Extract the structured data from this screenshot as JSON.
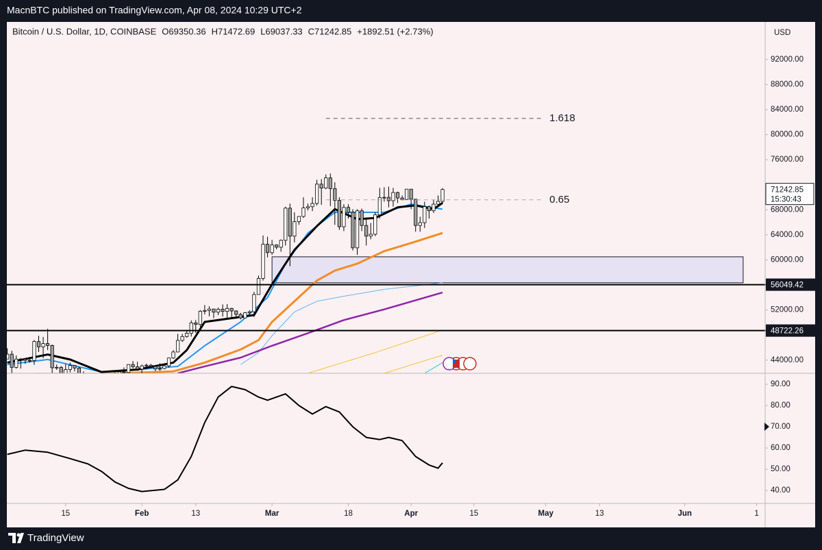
{
  "header": {
    "text": "MacnBTC published on TradingView.com, Apr 08, 2024 10:29 UTC+2"
  },
  "footer": {
    "brand": "TradingView"
  },
  "chart_data": [
    {
      "type": "candlestick",
      "title": "Bitcoin / U.S. Dollar, 1D, COINBASE",
      "legend_values": [
        "O69350.36",
        "H71472.69",
        "L69037.33",
        "C71242.85",
        "+1892.51 (+2.73%)"
      ],
      "currency": "USD",
      "up_color": "#ffffff",
      "down_color": "#9e9e9e",
      "edge_color": "#000000",
      "xlim": [
        0.9,
        169.9
      ],
      "ylim": [
        41900,
        98000
      ],
      "yticks": [
        {
          "value": 92000,
          "label": "92000.00"
        },
        {
          "value": 88000,
          "label": "88000.00"
        },
        {
          "value": 84000,
          "label": "84000.00"
        },
        {
          "value": 80000,
          "label": "80000.00"
        },
        {
          "value": 76000,
          "label": "76000.00"
        },
        {
          "value": 68000,
          "label": "68000.00"
        },
        {
          "value": 64000,
          "label": "64000.00"
        },
        {
          "value": 60000,
          "label": "60000.00"
        },
        {
          "value": 52000,
          "label": "52000.00"
        },
        {
          "value": 44000,
          "label": "44000.00"
        }
      ],
      "grid": false,
      "x": [
        0,
        1,
        2,
        3,
        4,
        5,
        6,
        7,
        8,
        9,
        10,
        11,
        12,
        13,
        14,
        15,
        16,
        17,
        18,
        19,
        20,
        21,
        22,
        23,
        24,
        25,
        26,
        27,
        28,
        29,
        30,
        31,
        32,
        33,
        34,
        35,
        36,
        37,
        38,
        39,
        40,
        41,
        42,
        43,
        44,
        45,
        46,
        47,
        48,
        49,
        50,
        51,
        52,
        53,
        54,
        55,
        56,
        57,
        58,
        59,
        60,
        61,
        62,
        63,
        64,
        65,
        66,
        67,
        68,
        69,
        70,
        71,
        72,
        73,
        74,
        75,
        76,
        77,
        78,
        79,
        80,
        81,
        82,
        83,
        84,
        85,
        86,
        87,
        88,
        89,
        90,
        91,
        92,
        93,
        94,
        95,
        96,
        97,
        98
      ],
      "candles": [
        [
          42280,
          44200,
          42200,
          44180
        ],
        [
          44180,
          45900,
          44150,
          44950
        ],
        [
          44950,
          45500,
          40800,
          42850
        ],
        [
          42850,
          44750,
          42650,
          44170
        ],
        [
          44170,
          44350,
          42650,
          44160
        ],
        [
          44160,
          44250,
          43400,
          43970
        ],
        [
          43970,
          44500,
          43600,
          43940
        ],
        [
          43940,
          47200,
          43250,
          46970
        ],
        [
          46970,
          47900,
          45300,
          46120
        ],
        [
          46120,
          47700,
          44300,
          46650
        ],
        [
          46650,
          49000,
          45600,
          46340
        ],
        [
          46340,
          46500,
          41500,
          42780
        ],
        [
          42780,
          43300,
          42450,
          42850
        ],
        [
          42850,
          43050,
          41700,
          41730
        ],
        [
          41730,
          43400,
          41700,
          42500
        ],
        [
          42500,
          43600,
          42050,
          43150
        ],
        [
          43150,
          43200,
          42200,
          42740
        ],
        [
          42740,
          42900,
          40700,
          41270
        ],
        [
          41270,
          42200,
          40300,
          41620
        ],
        [
          41620,
          41850,
          41450,
          41670
        ],
        [
          41670,
          41900,
          41500,
          41550
        ],
        [
          41550,
          41700,
          39450,
          39530
        ],
        [
          39530,
          40150,
          38550,
          39850
        ],
        [
          39850,
          40500,
          39500,
          40080
        ],
        [
          40080,
          40300,
          39250,
          39940
        ],
        [
          39940,
          42200,
          39800,
          41810
        ],
        [
          41810,
          42250,
          41400,
          42120
        ],
        [
          42120,
          42850,
          41650,
          42030
        ],
        [
          42030,
          43350,
          41800,
          43300
        ],
        [
          43300,
          43850,
          42700,
          42940
        ],
        [
          42940,
          43750,
          42300,
          42570
        ],
        [
          42570,
          43300,
          41900,
          43080
        ],
        [
          43080,
          43450,
          42550,
          43190
        ],
        [
          43190,
          43400,
          42900,
          43000
        ],
        [
          43000,
          43100,
          42250,
          42580
        ],
        [
          42580,
          43500,
          42300,
          42660
        ],
        [
          42660,
          43400,
          42550,
          43090
        ],
        [
          43090,
          44400,
          42800,
          44340
        ],
        [
          44340,
          45600,
          44200,
          45300
        ],
        [
          45300,
          48200,
          45250,
          47150
        ],
        [
          47150,
          48200,
          46900,
          47770
        ],
        [
          47770,
          48600,
          47600,
          48290
        ],
        [
          48290,
          50350,
          47750,
          49950
        ],
        [
          49950,
          50400,
          48350,
          49710
        ],
        [
          49710,
          52000,
          49300,
          51810
        ],
        [
          51810,
          52800,
          51300,
          51930
        ],
        [
          51930,
          52600,
          51000,
          52160
        ],
        [
          52160,
          52200,
          50700,
          51660
        ],
        [
          51660,
          52400,
          51200,
          52130
        ],
        [
          52130,
          52900,
          50950,
          51780
        ],
        [
          51780,
          52950,
          50650,
          52260
        ],
        [
          52260,
          52350,
          50800,
          51850
        ],
        [
          51850,
          51950,
          50600,
          51300
        ],
        [
          51300,
          51550,
          50500,
          50740
        ],
        [
          50740,
          51700,
          50700,
          51570
        ],
        [
          51570,
          51950,
          51300,
          51730
        ],
        [
          51730,
          54900,
          50900,
          54480
        ],
        [
          54480,
          57500,
          54450,
          57050
        ],
        [
          57050,
          63900,
          56700,
          62500
        ],
        [
          62500,
          63700,
          60400,
          61170
        ],
        [
          61170,
          63200,
          60800,
          62390
        ],
        [
          62390,
          62500,
          61700,
          62030
        ],
        [
          62030,
          63250,
          61300,
          63130
        ],
        [
          63130,
          68500,
          62300,
          68270
        ],
        [
          68270,
          69000,
          59000,
          63800
        ],
        [
          63800,
          67600,
          62800,
          66110
        ],
        [
          66110,
          67000,
          65600,
          66940
        ],
        [
          66940,
          70000,
          66700,
          68300
        ],
        [
          68300,
          69000,
          67900,
          68500
        ],
        [
          68500,
          70000,
          67800,
          69020
        ],
        [
          69020,
          72800,
          68700,
          72100
        ],
        [
          72100,
          72900,
          68800,
          71470
        ],
        [
          71470,
          73650,
          71300,
          73100
        ],
        [
          73100,
          73800,
          68600,
          71390
        ],
        [
          71390,
          72400,
          65600,
          69500
        ],
        [
          69500,
          70000,
          64800,
          65300
        ],
        [
          65300,
          68900,
          64600,
          68390
        ],
        [
          68390,
          68900,
          66600,
          67600
        ],
        [
          67600,
          68100,
          61500,
          61930
        ],
        [
          61930,
          68100,
          60800,
          67850
        ],
        [
          67850,
          68200,
          64600,
          65500
        ],
        [
          65500,
          66600,
          62300,
          63800
        ],
        [
          63800,
          65900,
          63300,
          64100
        ],
        [
          64100,
          67600,
          63800,
          67200
        ],
        [
          67200,
          71500,
          66600,
          69950
        ],
        [
          69950,
          71600,
          69300,
          69990
        ],
        [
          69990,
          71700,
          68400,
          69450
        ],
        [
          69450,
          71500,
          68500,
          70760
        ],
        [
          70760,
          70900,
          69100,
          69890
        ],
        [
          69890,
          70300,
          69500,
          69650
        ],
        [
          69650,
          71300,
          69600,
          71300
        ],
        [
          71300,
          71300,
          68100,
          69700
        ],
        [
          69700,
          69700,
          64500,
          65500
        ],
        [
          65500,
          66900,
          64500,
          65950
        ],
        [
          65950,
          69300,
          65100,
          68500
        ],
        [
          68500,
          68700,
          66600,
          67850
        ],
        [
          67850,
          69600,
          67500,
          68900
        ],
        [
          68900,
          70300,
          68800,
          69350
        ],
        [
          69350.36,
          71472.69,
          69037.33,
          71242.85
        ]
      ],
      "lines": [
        {
          "color": "#64b5f6",
          "width": 1,
          "x": [
            53,
            57,
            60,
            65,
            70,
            76,
            85,
            98
          ],
          "values": [
            43300,
            45200,
            47900,
            51700,
            53400,
            54200,
            55300,
            56350
          ]
        },
        {
          "color": "#fbc02d",
          "width": 1,
          "x": [
            68,
            83,
            98
          ],
          "values": [
            41900,
            45200,
            48800
          ]
        },
        {
          "color": "#fbc02d",
          "width": 1,
          "x": [
            85,
            98
          ],
          "values": [
            41900,
            44800
          ]
        },
        {
          "color": "#26c6da",
          "width": 1,
          "x": [
            94,
            98
          ],
          "values": [
            41900,
            43600
          ]
        },
        {
          "color": "#8e24aa",
          "width": 2.5,
          "x": [
            39,
            45,
            53,
            60,
            68,
            76,
            85,
            98
          ],
          "values": [
            41900,
            43000,
            44400,
            46300,
            48300,
            50400,
            52100,
            54800
          ]
        },
        {
          "color": "#f28c28",
          "width": 3,
          "x": [
            7,
            22,
            38,
            45,
            53,
            57,
            60,
            65,
            70,
            74,
            79,
            85,
            91,
            98
          ],
          "values": [
            41800,
            41800,
            42200,
            43600,
            45700,
            47200,
            50100,
            53400,
            56700,
            58300,
            59400,
            61400,
            62700,
            64300
          ]
        },
        {
          "color": "#2196f3",
          "width": 2,
          "x": [
            1,
            10,
            22,
            30,
            39,
            45,
            53,
            59,
            63,
            68,
            74,
            79,
            85,
            91,
            98
          ],
          "values": [
            43300,
            44100,
            42100,
            42500,
            43000,
            46300,
            50100,
            54000,
            59400,
            64300,
            67600,
            67600,
            67600,
            68900,
            68100
          ]
        },
        {
          "color": "#000000",
          "width": 3,
          "x": [
            1,
            10,
            15,
            22,
            30,
            38,
            41,
            45,
            56,
            60,
            65,
            70,
            74,
            79,
            83,
            88,
            92,
            96,
            98
          ],
          "values": [
            43600,
            44900,
            44100,
            42100,
            42500,
            43600,
            45600,
            50100,
            51200,
            56100,
            61600,
            65400,
            68100,
            66500,
            66700,
            68400,
            68700,
            68100,
            69100
          ]
        }
      ],
      "zone": {
        "x": [
          60,
          165
        ],
        "y": [
          56350,
          60500
        ],
        "color": "#e6e2f3"
      },
      "levels": [
        56049.42,
        48722.26
      ],
      "fib_levels": [
        {
          "value": 82600,
          "label": "1.618",
          "x": [
            72,
            120
          ],
          "color": "#555555"
        },
        {
          "value": 69590,
          "label": "0.65",
          "x": [
            72,
            120
          ],
          "color": "#a8a8a8"
        }
      ],
      "last_price": {
        "value": 71242.85,
        "countdown": "15:30:43"
      }
    },
    {
      "type": "line",
      "xlim": [
        0.9,
        169.9
      ],
      "ylim": [
        33.9,
        95.2
      ],
      "yticks": [
        {
          "value": 90,
          "label": "90.00"
        },
        {
          "value": 80,
          "label": "80.00"
        },
        {
          "value": 70,
          "label": "70.00"
        },
        {
          "value": 60,
          "label": "60.00"
        },
        {
          "value": 50,
          "label": "50.00"
        },
        {
          "value": 40,
          "label": "40.00"
        }
      ],
      "xticks": [
        {
          "value": 14,
          "label": "15"
        },
        {
          "value": 31,
          "label": "Feb"
        },
        {
          "value": 43,
          "label": "13"
        },
        {
          "value": 60,
          "label": "Mar"
        },
        {
          "value": 77,
          "label": "18"
        },
        {
          "value": 91,
          "label": "Apr"
        },
        {
          "value": 105,
          "label": "15"
        },
        {
          "value": 121,
          "label": "May"
        },
        {
          "value": 133,
          "label": "13"
        },
        {
          "value": 152,
          "label": "Jun"
        },
        {
          "value": 168,
          "label": "1"
        }
      ],
      "series": [
        {
          "color": "#000000",
          "x": [
            1,
            5,
            10,
            15,
            19,
            22,
            25,
            28,
            31,
            36,
            39,
            42,
            45,
            48,
            51,
            54,
            57,
            59,
            63,
            66,
            69,
            72,
            75,
            78,
            81,
            84,
            86,
            89,
            92,
            95,
            97,
            98
          ],
          "values": [
            57,
            59,
            58,
            55,
            52.5,
            49,
            44,
            41,
            39.5,
            40.5,
            45,
            56,
            72,
            84,
            89,
            87.5,
            84,
            82.5,
            85.5,
            80,
            76,
            79.5,
            77,
            70,
            65,
            64,
            65,
            63.5,
            56,
            52,
            50.5,
            53
          ]
        }
      ]
    }
  ]
}
